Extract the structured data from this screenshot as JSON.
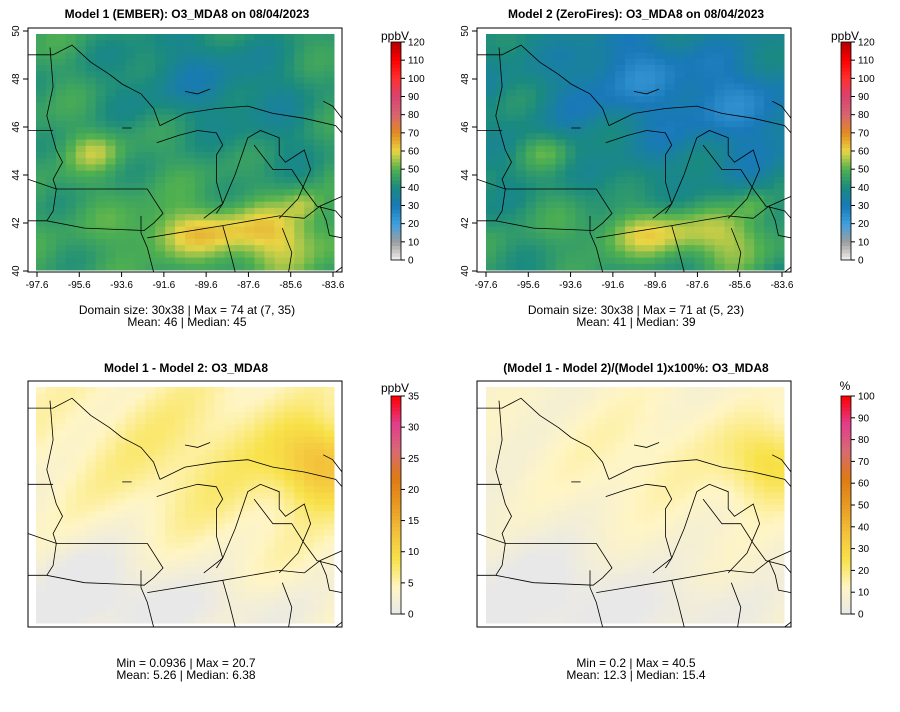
{
  "chart_data": [
    {
      "type": "heatmap",
      "title": "Model 1 (EMBER): O3_MDA8 on 08/04/2023",
      "variable": "O3_MDA8",
      "date": "08/04/2023",
      "units": "ppbV",
      "x_ticks": [
        "-97.6",
        "-95.6",
        "-93.6",
        "-91.6",
        "-89.6",
        "-87.6",
        "-85.6",
        "-83.6"
      ],
      "y_ticks": [
        "40",
        "42",
        "44",
        "46",
        "48",
        "50"
      ],
      "colorbar_ticks": [
        "0",
        "10",
        "20",
        "30",
        "40",
        "50",
        "60",
        "70",
        "80",
        "90",
        "100",
        "110",
        "120"
      ],
      "colorbar_range": [
        0,
        120
      ],
      "colorbar_scale": "concentration",
      "stats_line1": "Domain size: 30x38 | Max = 74 at (7, 35)",
      "stats_line2": "Mean: 46 |  Median: 45",
      "domain_size": "30x38",
      "max": 74,
      "max_at": "(7, 35)",
      "mean": 46,
      "median": 45
    },
    {
      "type": "heatmap",
      "title": "Model 2 (ZeroFires): O3_MDA8 on 08/04/2023",
      "variable": "O3_MDA8",
      "date": "08/04/2023",
      "units": "ppbV",
      "x_ticks": [
        "-97.6",
        "-95.6",
        "-93.6",
        "-91.6",
        "-89.6",
        "-87.6",
        "-85.6",
        "-83.6"
      ],
      "y_ticks": [
        "40",
        "42",
        "44",
        "46",
        "48",
        "50"
      ],
      "colorbar_ticks": [
        "0",
        "10",
        "20",
        "30",
        "40",
        "50",
        "60",
        "70",
        "80",
        "90",
        "100",
        "110",
        "120"
      ],
      "colorbar_range": [
        0,
        120
      ],
      "colorbar_scale": "concentration",
      "stats_line1": "Domain size: 30x38 | Max = 71 at (5, 23)",
      "stats_line2": "Mean: 41 |  Median: 39",
      "domain_size": "30x38",
      "max": 71,
      "max_at": "(5, 23)",
      "mean": 41,
      "median": 39
    },
    {
      "type": "heatmap",
      "title": "Model 1 - Model 2: O3_MDA8",
      "variable": "O3_MDA8",
      "units": "ppbV",
      "colorbar_ticks": [
        "0",
        "5",
        "10",
        "15",
        "20",
        "25",
        "30",
        "35"
      ],
      "colorbar_range": [
        0,
        35
      ],
      "colorbar_scale": "difference",
      "stats_line1": "Min = 0.0936 | Max = 20.7",
      "stats_line2": "Mean: 5.26 |  Median: 6.38",
      "min": 0.0936,
      "max": 20.7,
      "mean": 5.26,
      "median": 6.38
    },
    {
      "type": "heatmap",
      "title": "(Model 1 - Model 2)/(Model 1)x100%: O3_MDA8",
      "variable": "O3_MDA8",
      "units": "%",
      "colorbar_ticks": [
        "0",
        "10",
        "20",
        "30",
        "40",
        "50",
        "60",
        "70",
        "80",
        "90",
        "100"
      ],
      "colorbar_range": [
        0,
        100
      ],
      "colorbar_scale": "difference",
      "stats_line1": "Min = 0.2 | Max = 40.5",
      "stats_line2": "Mean: 12.3 |  Median: 15.4",
      "min": 0.2,
      "max": 40.5,
      "mean": 12.3,
      "median": 15.4
    }
  ],
  "colors": {
    "concentration_scale": [
      "#f2f2f2",
      "#9e9e9e",
      "#3fa0df",
      "#1979b8",
      "#1a8a80",
      "#4fb050",
      "#e9d645",
      "#e28b1f",
      "#d8646f",
      "#d84370",
      "#ff3030",
      "#ff0000",
      "#b20000"
    ],
    "difference_scale": [
      "#e8e8e8",
      "#fff5c4",
      "#f8e24a",
      "#f3c13b",
      "#e99a22",
      "#df7a14",
      "#d86a73",
      "#e23c8c",
      "#ff0000"
    ]
  }
}
